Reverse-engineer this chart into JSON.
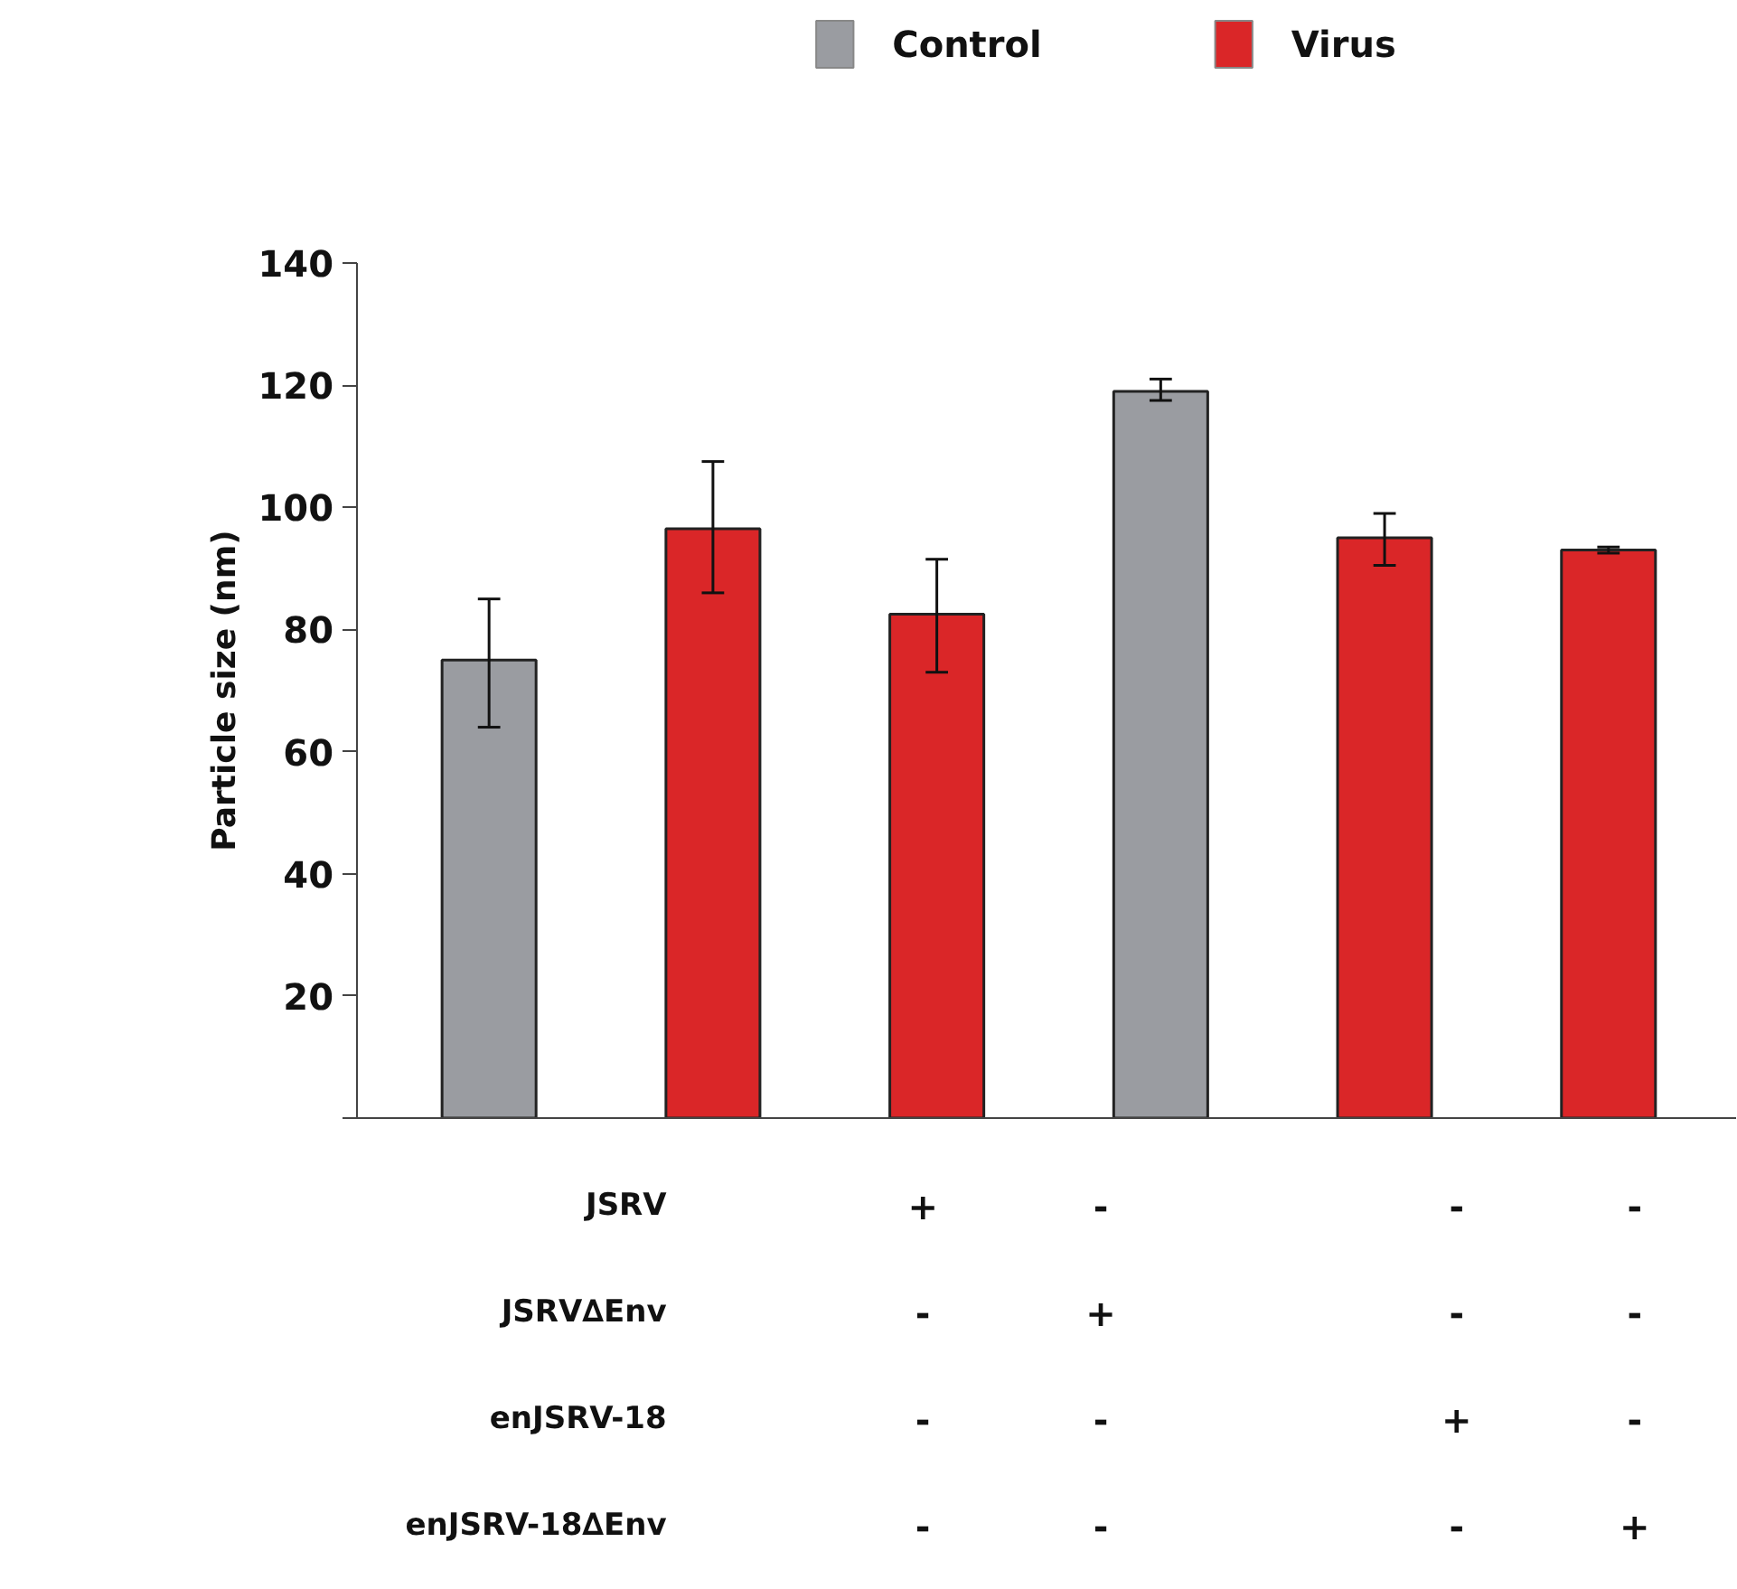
{
  "chart_data": {
    "type": "bar",
    "ylabel": "Particle size (nm)",
    "categories": [
      null,
      null,
      null,
      null,
      null,
      null
    ],
    "series": [
      {
        "name": "Control",
        "color": "#9a9ca1",
        "values": [
          75,
          null,
          null,
          119,
          null,
          null
        ],
        "errors": [
          [
            64,
            85
          ],
          null,
          null,
          [
            117.5,
            121
          ],
          null,
          null
        ]
      },
      {
        "name": "Virus",
        "color": "#da2628",
        "values": [
          null,
          96.5,
          82.5,
          null,
          95,
          93
        ],
        "errors": [
          null,
          [
            86,
            107.5
          ],
          [
            73,
            91.5
          ],
          null,
          [
            90.5,
            99
          ],
          [
            92.5,
            93.5
          ]
        ]
      }
    ],
    "ylim": [
      0,
      140
    ],
    "yticks": [
      {
        "value": 0,
        "label": null
      },
      20,
      40,
      60,
      80,
      100,
      120,
      140
    ],
    "grid": false,
    "legend": "top",
    "annotations": [
      "JSRV",
      "+",
      "-",
      "-",
      "-",
      "JSRV∆Env",
      "-",
      "+",
      "-",
      "-",
      "enJSRV-18",
      "-",
      "-",
      "+",
      "-",
      "enJSRV-18∆Env",
      "-",
      "-",
      "-",
      "+"
    ]
  }
}
